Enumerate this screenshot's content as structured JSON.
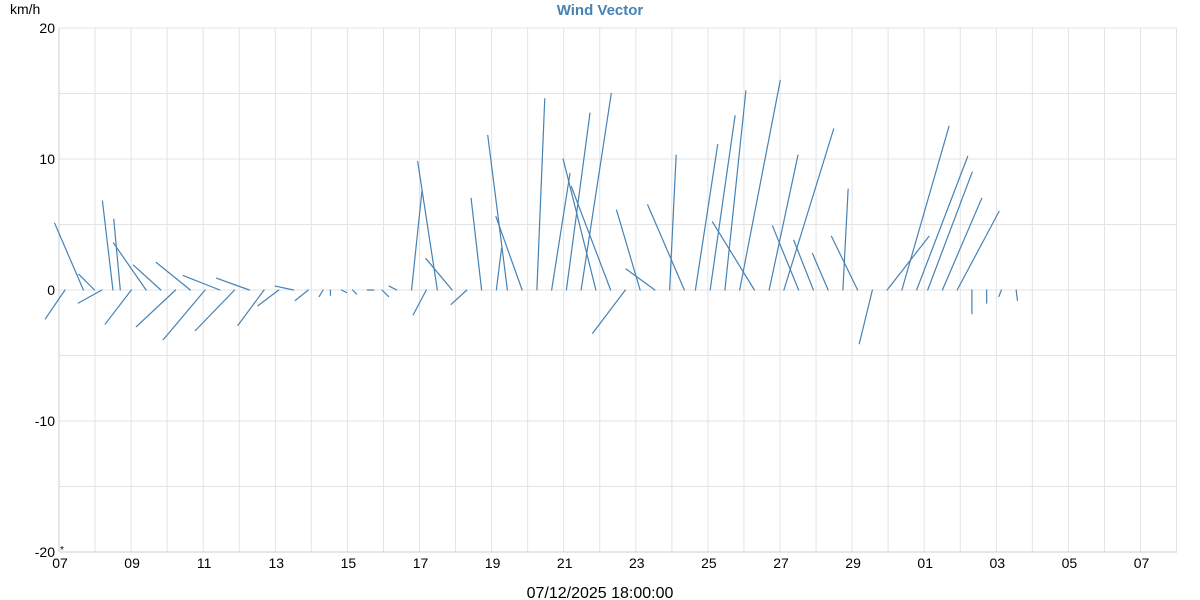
{
  "chart_data": {
    "type": "wind-vector",
    "title": "Wind Vector",
    "unit": "km/h",
    "date_label": "07/12/2025 18:00:00",
    "y_marker": "*",
    "ylim": [
      -20,
      20
    ],
    "y_ticks": [
      {
        "value": 20,
        "label": "20"
      },
      {
        "value": 10,
        "label": "10"
      },
      {
        "value": 0,
        "label": "0"
      },
      {
        "value": -10,
        "label": "-10"
      },
      {
        "value": -20,
        "label": "-20"
      }
    ],
    "x_ticks": [
      "07",
      "09",
      "11",
      "13",
      "15",
      "17",
      "19",
      "21",
      "23",
      "25",
      "27",
      "29",
      "01",
      "03",
      "05",
      "07"
    ],
    "grid": true,
    "color": "#4682b4",
    "vectors": [
      {
        "t": 0.0,
        "u": -1.5,
        "v": -2.2
      },
      {
        "t": 0.5,
        "u": -2.2,
        "v": 5.1
      },
      {
        "t": 0.8,
        "u": -1.2,
        "v": 1.2
      },
      {
        "t": 1.0,
        "u": -1.8,
        "v": -1.0
      },
      {
        "t": 1.3,
        "u": -0.8,
        "v": 6.8
      },
      {
        "t": 1.5,
        "u": -0.5,
        "v": 5.4
      },
      {
        "t": 1.8,
        "u": -2.0,
        "v": -2.6
      },
      {
        "t": 2.2,
        "u": -2.5,
        "v": 3.6
      },
      {
        "t": 2.6,
        "u": -2.1,
        "v": 1.9
      },
      {
        "t": 3.0,
        "u": -3.0,
        "v": -2.8
      },
      {
        "t": 3.4,
        "u": -2.6,
        "v": 2.1
      },
      {
        "t": 3.8,
        "u": -3.2,
        "v": -3.8
      },
      {
        "t": 4.2,
        "u": -2.8,
        "v": 1.1
      },
      {
        "t": 4.6,
        "u": -3.0,
        "v": -3.1
      },
      {
        "t": 5.0,
        "u": -2.5,
        "v": 0.9
      },
      {
        "t": 5.4,
        "u": -2.0,
        "v": -2.7
      },
      {
        "t": 5.8,
        "u": -1.6,
        "v": -1.2
      },
      {
        "t": 6.2,
        "u": -1.4,
        "v": 0.3
      },
      {
        "t": 6.6,
        "u": -1.0,
        "v": -0.8
      },
      {
        "t": 7.0,
        "u": -0.3,
        "v": -0.5
      },
      {
        "t": 7.2,
        "u": 0.0,
        "v": -0.4
      },
      {
        "t": 7.5,
        "u": 0.4,
        "v": -0.2
      },
      {
        "t": 7.8,
        "u": 0.3,
        "v": -0.3
      },
      {
        "t": 8.2,
        "u": 0.5,
        "v": 0.0
      },
      {
        "t": 8.6,
        "u": 0.5,
        "v": -0.5
      },
      {
        "t": 9.0,
        "u": -0.6,
        "v": 0.3
      },
      {
        "t": 9.4,
        "u": 0.8,
        "v": 7.6
      },
      {
        "t": 9.8,
        "u": -1.0,
        "v": -1.9
      },
      {
        "t": 10.1,
        "u": -1.5,
        "v": 9.8
      },
      {
        "t": 10.5,
        "u": -2.0,
        "v": 2.4
      },
      {
        "t": 10.9,
        "u": -1.2,
        "v": -1.1
      },
      {
        "t": 11.3,
        "u": -0.8,
        "v": 7.0
      },
      {
        "t": 11.7,
        "u": 0.4,
        "v": 3.2
      },
      {
        "t": 12.0,
        "u": -1.5,
        "v": 11.8
      },
      {
        "t": 12.4,
        "u": -2.0,
        "v": 5.6
      },
      {
        "t": 12.8,
        "u": 0.6,
        "v": 14.6
      },
      {
        "t": 13.2,
        "u": 1.4,
        "v": 8.9
      },
      {
        "t": 13.6,
        "u": 1.8,
        "v": 13.5
      },
      {
        "t": 14.0,
        "u": 2.3,
        "v": 15.0
      },
      {
        "t": 14.4,
        "u": -2.5,
        "v": 10.0
      },
      {
        "t": 14.8,
        "u": -3.0,
        "v": 7.9
      },
      {
        "t": 15.2,
        "u": -2.5,
        "v": -3.3
      },
      {
        "t": 15.6,
        "u": -1.8,
        "v": 6.1
      },
      {
        "t": 16.0,
        "u": -2.2,
        "v": 1.6
      },
      {
        "t": 16.4,
        "u": 0.5,
        "v": 10.3
      },
      {
        "t": 16.8,
        "u": -2.8,
        "v": 6.5
      },
      {
        "t": 17.1,
        "u": 1.7,
        "v": 11.1
      },
      {
        "t": 17.5,
        "u": 1.9,
        "v": 13.3
      },
      {
        "t": 17.9,
        "u": 1.6,
        "v": 15.2
      },
      {
        "t": 18.3,
        "u": 3.1,
        "v": 16.0
      },
      {
        "t": 18.7,
        "u": -3.2,
        "v": 5.2
      },
      {
        "t": 19.1,
        "u": 2.2,
        "v": 10.3
      },
      {
        "t": 19.5,
        "u": 3.8,
        "v": 12.3
      },
      {
        "t": 19.9,
        "u": -2.0,
        "v": 4.9
      },
      {
        "t": 20.3,
        "u": -1.5,
        "v": 3.8
      },
      {
        "t": 20.7,
        "u": -1.2,
        "v": 2.8
      },
      {
        "t": 21.1,
        "u": 0.4,
        "v": 7.7
      },
      {
        "t": 21.5,
        "u": -2.0,
        "v": 4.1
      },
      {
        "t": 21.9,
        "u": -1.0,
        "v": -4.1
      },
      {
        "t": 22.3,
        "u": 3.2,
        "v": 4.1
      },
      {
        "t": 22.7,
        "u": 3.6,
        "v": 12.5
      },
      {
        "t": 23.1,
        "u": 3.9,
        "v": 10.2
      },
      {
        "t": 23.4,
        "u": 3.4,
        "v": 9.0
      },
      {
        "t": 23.8,
        "u": 3.0,
        "v": 7.0
      },
      {
        "t": 24.2,
        "u": 3.2,
        "v": 6.0
      },
      {
        "t": 24.6,
        "u": 0.0,
        "v": -1.8
      },
      {
        "t": 25.0,
        "u": 0.0,
        "v": -1.0
      },
      {
        "t": 25.4,
        "u": -0.2,
        "v": -0.5
      },
      {
        "t": 25.8,
        "u": 0.1,
        "v": -0.8
      }
    ]
  }
}
